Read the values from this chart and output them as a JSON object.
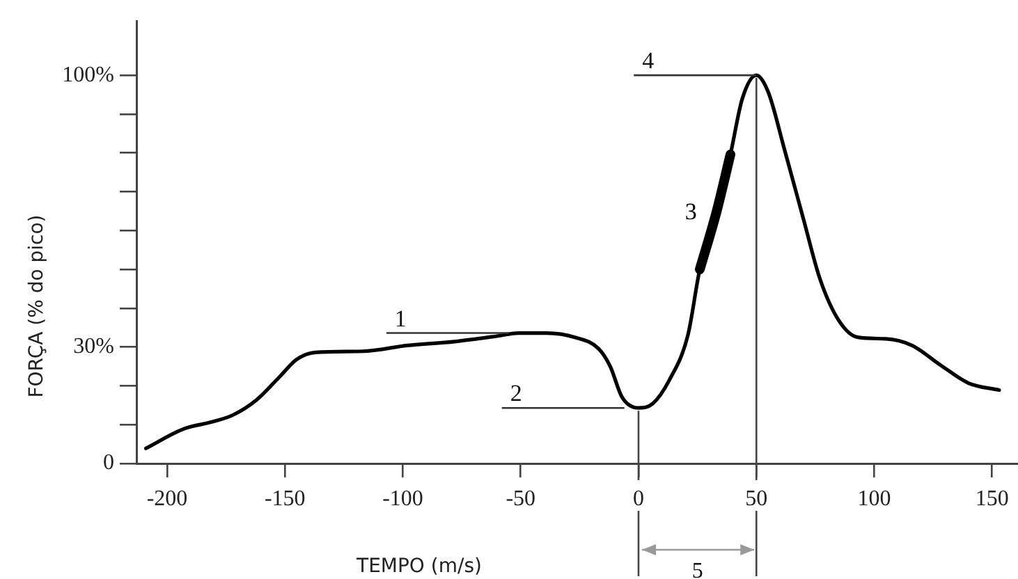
{
  "chart_data": {
    "type": "line",
    "xlabel": "TEMPO (m/s)",
    "ylabel": "FORÇA (% do pico)",
    "xlim": [
      -213,
      161
    ],
    "ylim": [
      0,
      114
    ],
    "xticks": [
      -200,
      -150,
      -100,
      -50,
      0,
      50,
      100,
      150
    ],
    "yticks": [
      {
        "value": 0,
        "label": "0"
      },
      {
        "value": 10,
        "label": null
      },
      {
        "value": 20,
        "label": null
      },
      {
        "value": 30,
        "label": "30%"
      },
      {
        "value": 40,
        "label": null
      },
      {
        "value": 50,
        "label": null
      },
      {
        "value": 60,
        "label": null
      },
      {
        "value": 70,
        "label": null
      },
      {
        "value": 80,
        "label": null
      },
      {
        "value": 90,
        "label": null
      },
      {
        "value": 100,
        "label": "100%"
      }
    ],
    "grid": false,
    "legend": false,
    "marker": "none",
    "line_style": "solid",
    "series": [
      {
        "color": "#000000",
        "x": [
          -209,
          -193,
          -181,
          -172,
          -162,
          -152,
          -145,
          -137,
          -117,
          -98,
          -78,
          -59,
          -51,
          -39,
          -27,
          -17,
          -12,
          -7,
          0,
          6,
          13,
          21,
          26,
          33,
          39,
          44,
          50,
          55,
          62,
          70,
          77,
          85,
          93,
          105,
          116,
          128,
          140,
          153
        ],
        "values": [
          3.9,
          8.9,
          10.7,
          12.5,
          16.4,
          22.5,
          26.8,
          28.6,
          28.9,
          30.4,
          31.4,
          32.9,
          33.6,
          33.6,
          32.5,
          29.6,
          25,
          17.1,
          14.3,
          15.4,
          21.4,
          33.2,
          50,
          64.6,
          79.6,
          93.9,
          100,
          95.7,
          80.7,
          62.9,
          47.5,
          36.8,
          32.5,
          32.1,
          30.4,
          25.4,
          20.7,
          18.9
        ]
      },
      {
        "name": "3",
        "color": "#000000",
        "x": [
          26,
          33,
          39
        ],
        "values": [
          50,
          64.6,
          79.6
        ]
      }
    ],
    "annotations": [
      {
        "text": "1",
        "x": -55,
        "y": 33.6
      },
      {
        "text": "2",
        "x": -6,
        "y": 14.3
      },
      {
        "text": "4",
        "x": 50,
        "y": 100
      },
      "5"
    ],
    "ref_lines": [
      {
        "axis": "x",
        "value": 0,
        "color": "#444444"
      },
      {
        "axis": "x",
        "value": 50,
        "color": "#444444"
      }
    ]
  }
}
